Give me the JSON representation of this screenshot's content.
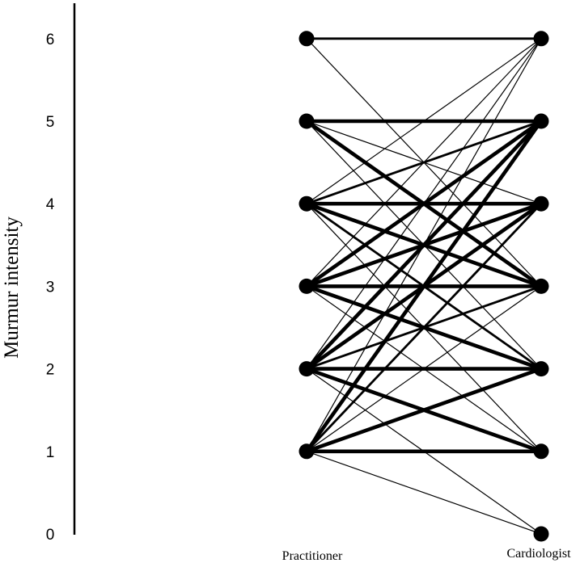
{
  "chart_data": {
    "type": "parallel-slope",
    "ylabel": "Murmur intensity",
    "ylim": [
      0,
      6
    ],
    "yticks": [
      "0",
      "1",
      "2",
      "3",
      "4",
      "5",
      "6"
    ],
    "groups": [
      "Practitioner",
      "Cardiologist"
    ],
    "practitioner_points": [
      1,
      2,
      3,
      4,
      5,
      6
    ],
    "cardiologist_points": [
      0,
      1,
      2,
      3,
      4,
      5,
      6
    ],
    "grid": false,
    "legend": "none",
    "links": [
      {
        "practitioner": 6,
        "cardiologist": 6,
        "weight": "medium"
      },
      {
        "practitioner": 6,
        "cardiologist": 3,
        "weight": "thin"
      },
      {
        "practitioner": 5,
        "cardiologist": 5,
        "weight": "heavy"
      },
      {
        "practitioner": 5,
        "cardiologist": 4,
        "weight": "thin"
      },
      {
        "practitioner": 5,
        "cardiologist": 3,
        "weight": "heavy"
      },
      {
        "practitioner": 5,
        "cardiologist": 2,
        "weight": "thin"
      },
      {
        "practitioner": 4,
        "cardiologist": 6,
        "weight": "thin"
      },
      {
        "practitioner": 4,
        "cardiologist": 5,
        "weight": "medium"
      },
      {
        "practitioner": 4,
        "cardiologist": 4,
        "weight": "heavy"
      },
      {
        "practitioner": 4,
        "cardiologist": 3,
        "weight": "heavy"
      },
      {
        "practitioner": 4,
        "cardiologist": 2,
        "weight": "medium"
      },
      {
        "practitioner": 4,
        "cardiologist": 1,
        "weight": "thin"
      },
      {
        "practitioner": 3,
        "cardiologist": 6,
        "weight": "thin"
      },
      {
        "practitioner": 3,
        "cardiologist": 5,
        "weight": "heavy"
      },
      {
        "practitioner": 3,
        "cardiologist": 4,
        "weight": "heavy"
      },
      {
        "practitioner": 3,
        "cardiologist": 3,
        "weight": "heavy"
      },
      {
        "practitioner": 3,
        "cardiologist": 2,
        "weight": "heavy"
      },
      {
        "practitioner": 3,
        "cardiologist": 1,
        "weight": "thin"
      },
      {
        "practitioner": 2,
        "cardiologist": 6,
        "weight": "thin"
      },
      {
        "practitioner": 2,
        "cardiologist": 5,
        "weight": "heavy"
      },
      {
        "practitioner": 2,
        "cardiologist": 4,
        "weight": "heavy"
      },
      {
        "practitioner": 2,
        "cardiologist": 3,
        "weight": "medium"
      },
      {
        "practitioner": 2,
        "cardiologist": 2,
        "weight": "heavy"
      },
      {
        "practitioner": 2,
        "cardiologist": 1,
        "weight": "heavy"
      },
      {
        "practitioner": 2,
        "cardiologist": 0,
        "weight": "thin"
      },
      {
        "practitioner": 1,
        "cardiologist": 6,
        "weight": "thin"
      },
      {
        "practitioner": 1,
        "cardiologist": 5,
        "weight": "heavy"
      },
      {
        "practitioner": 1,
        "cardiologist": 4,
        "weight": "medium"
      },
      {
        "practitioner": 1,
        "cardiologist": 3,
        "weight": "thin"
      },
      {
        "practitioner": 1,
        "cardiologist": 2,
        "weight": "heavy"
      },
      {
        "practitioner": 1,
        "cardiologist": 1,
        "weight": "heavy"
      },
      {
        "practitioner": 1,
        "cardiologist": 0,
        "weight": "thin"
      }
    ]
  }
}
